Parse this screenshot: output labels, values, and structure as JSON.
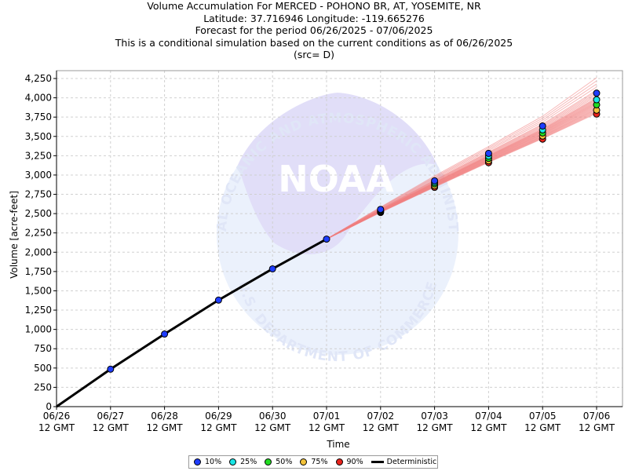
{
  "titles": {
    "line1": "Volume Accumulation For MERCED - POHONO BR, AT, YOSEMITE, NR",
    "line2": "Latitude: 37.716946 Longitude: -119.665276",
    "line3": "Forecast for the period 06/26/2025 - 07/06/2025",
    "line4": "This is a conditional simulation based on the current conditions as of 06/26/2025",
    "line5": "(src= D)"
  },
  "watermark": {
    "center_text": "NOAA",
    "top_arc": "NATIONAL OCEANIC AND ATMOSPHERIC ADMINISTRATION",
    "bottom_arc": "U.S. DEPARTMENT OF COMMERCE"
  },
  "legend": [
    {
      "label": "10%",
      "color": "#1f3dff"
    },
    {
      "label": "25%",
      "color": "#19e6e6"
    },
    {
      "label": "50%",
      "color": "#22dd22"
    },
    {
      "label": "75%",
      "color": "#f2c23a"
    },
    {
      "label": "90%",
      "color": "#e8231c"
    },
    {
      "label": "Deterministic",
      "color": "#000000"
    }
  ],
  "chart_data": {
    "type": "line",
    "xlabel": "Time",
    "ylabel": "Volume [acre-feet]",
    "x_ticks": [
      {
        "date": "06/26",
        "time": "12 GMT"
      },
      {
        "date": "06/27",
        "time": "12 GMT"
      },
      {
        "date": "06/28",
        "time": "12 GMT"
      },
      {
        "date": "06/29",
        "time": "12 GMT"
      },
      {
        "date": "06/30",
        "time": "12 GMT"
      },
      {
        "date": "07/01",
        "time": "12 GMT"
      },
      {
        "date": "07/02",
        "time": "12 GMT"
      },
      {
        "date": "07/03",
        "time": "12 GMT"
      },
      {
        "date": "07/04",
        "time": "12 GMT"
      },
      {
        "date": "07/05",
        "time": "12 GMT"
      },
      {
        "date": "07/06",
        "time": "12 GMT"
      }
    ],
    "y_ticks": [
      "0",
      "250",
      "500",
      "750",
      "1,000",
      "1,250",
      "1,500",
      "1,750",
      "2,000",
      "2,250",
      "2,500",
      "2,750",
      "3,000",
      "3,250",
      "3,500",
      "3,750",
      "4,000",
      "4,250"
    ],
    "ylim": [
      0,
      4250
    ],
    "grid": true,
    "legend_position": "bottom-center",
    "deterministic": {
      "x": [
        "06/26 12 GMT",
        "06/27 12 GMT",
        "06/28 12 GMT",
        "06/29 12 GMT",
        "06/30 12 GMT",
        "07/01 12 GMT"
      ],
      "values": [
        0,
        485,
        940,
        1380,
        1785,
        2170
      ]
    },
    "ensemble_trace_color": "#f08080",
    "ensemble_trace_endpoints": [
      4260,
      4220,
      4180,
      4140,
      4100,
      4080,
      4060,
      4040,
      4020,
      4000,
      3990,
      3980,
      3970,
      3960,
      3950,
      3940,
      3930,
      3920,
      3910,
      3900,
      3890,
      3880,
      3870,
      3860,
      3850,
      3840,
      3830,
      3820,
      3810,
      3800
    ],
    "series": [
      {
        "name": "10%",
        "x": [
          "07/01 12 GMT",
          "07/02 12 GMT",
          "07/03 12 GMT",
          "07/04 12 GMT",
          "07/05 12 GMT",
          "07/06 12 GMT"
        ],
        "values": [
          2170,
          2555,
          2925,
          3280,
          3635,
          4060
        ]
      },
      {
        "name": "25%",
        "x": [
          "07/01 12 GMT",
          "07/02 12 GMT",
          "07/03 12 GMT",
          "07/04 12 GMT",
          "07/05 12 GMT",
          "07/06 12 GMT"
        ],
        "values": [
          2170,
          2545,
          2905,
          3245,
          3585,
          3975
        ]
      },
      {
        "name": "50%",
        "x": [
          "07/01 12 GMT",
          "07/02 12 GMT",
          "07/03 12 GMT",
          "07/04 12 GMT",
          "07/05 12 GMT",
          "07/06 12 GMT"
        ],
        "values": [
          2170,
          2535,
          2885,
          3215,
          3545,
          3910
        ]
      },
      {
        "name": "75%",
        "x": [
          "07/01 12 GMT",
          "07/02 12 GMT",
          "07/03 12 GMT",
          "07/04 12 GMT",
          "07/05 12 GMT",
          "07/06 12 GMT"
        ],
        "values": [
          2170,
          2525,
          2860,
          3185,
          3505,
          3840
        ]
      },
      {
        "name": "90%",
        "x": [
          "07/01 12 GMT",
          "07/02 12 GMT",
          "07/03 12 GMT",
          "07/04 12 GMT",
          "07/05 12 GMT",
          "07/06 12 GMT"
        ],
        "values": [
          2170,
          2515,
          2840,
          3160,
          3465,
          3790
        ]
      }
    ]
  }
}
